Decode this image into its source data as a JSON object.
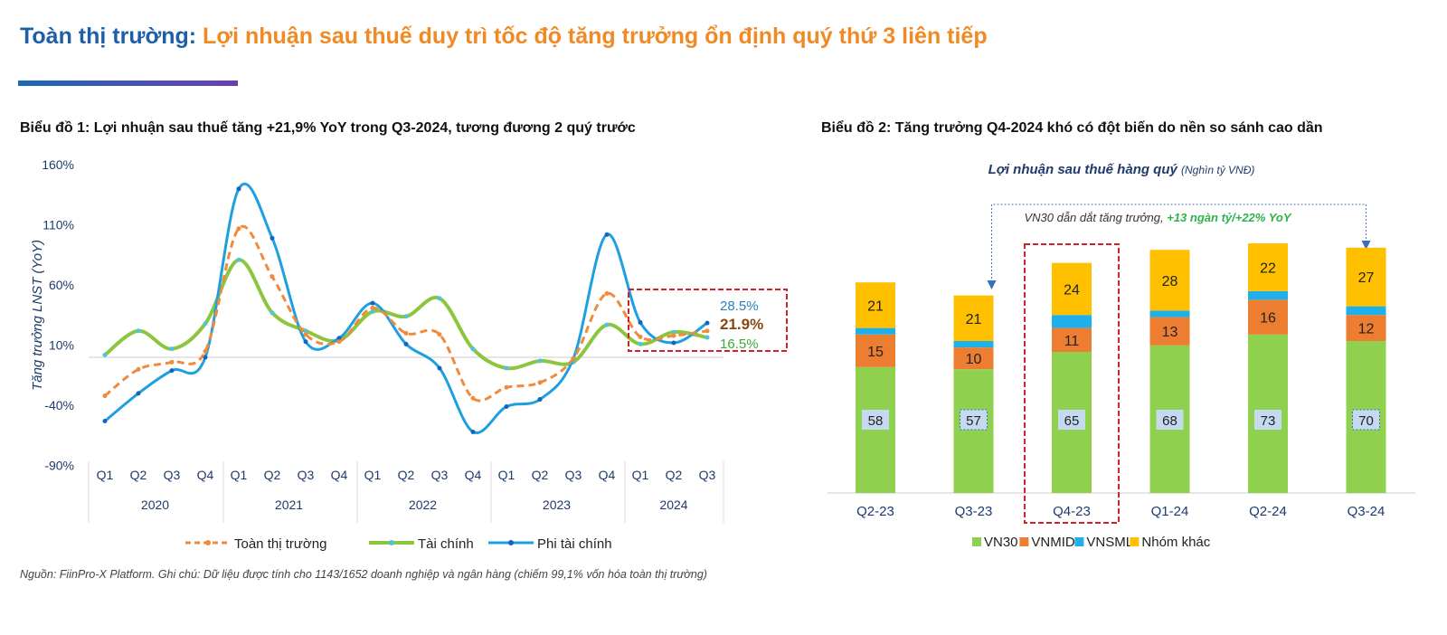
{
  "header": {
    "title_part1": "Toàn thị trường:",
    "title_part2": "Lợi nhuận sau thuế duy trì tốc độ tăng trưởng ổn định quý thứ 3 liên tiếp"
  },
  "footer": {
    "source": "Nguồn: FiinPro-X Platform. Ghi chú: Dữ liệu được tính cho 1143/1652 doanh nghiệp và ngân hàng (chiếm 99,1% vốn hóa toàn thị trường)"
  },
  "chart_data": [
    {
      "type": "line",
      "title": "Biểu đồ 1: Lợi nhuận sau thuế tăng +21,9% YoY trong Q3-2024, tương đương 2 quý trước",
      "ylabel": "Tăng trưởng LNST (YoY)",
      "ylim": [
        -90,
        160
      ],
      "yticks": [
        "160%",
        "110%",
        "60%",
        "10%",
        "-40%",
        "-90%"
      ],
      "ytick_values": [
        160,
        110,
        60,
        10,
        -40,
        -90
      ],
      "quarters": [
        "Q1",
        "Q2",
        "Q3",
        "Q4",
        "Q1",
        "Q2",
        "Q3",
        "Q4",
        "Q1",
        "Q2",
        "Q3",
        "Q4",
        "Q1",
        "Q2",
        "Q3",
        "Q4",
        "Q1",
        "Q2",
        "Q3"
      ],
      "years": [
        "2020",
        "2021",
        "2022",
        "2023",
        "2024"
      ],
      "series": [
        {
          "name": "Toàn thị trường",
          "color": "#f08a3c",
          "dashed": true,
          "values": [
            -32,
            -10,
            -4,
            5,
            107,
            67,
            19,
            13,
            41,
            20,
            19,
            -34,
            -25,
            -21,
            -1,
            53,
            17,
            18,
            21.9
          ],
          "end_label": "21.9%",
          "end_color": "#8b4513"
        },
        {
          "name": "Tài chính",
          "color": "#8cc63f",
          "dashed": false,
          "values": [
            2,
            22,
            7,
            28,
            81,
            37,
            22,
            14,
            38,
            34,
            49,
            7,
            -9,
            -3,
            -4,
            27,
            11,
            21,
            16.5
          ],
          "end_label": "16.5%",
          "end_color": "#3aaa35"
        },
        {
          "name": "Phi tài chính",
          "color": "#1ea0e0",
          "dashed": false,
          "values": [
            -53,
            -30,
            -11,
            0,
            140,
            99,
            13,
            16,
            45,
            11,
            -9,
            -62,
            -41,
            -35,
            -1,
            102,
            29,
            12,
            28.5
          ],
          "end_label": "28.5%",
          "end_color": "#2a7fc0"
        }
      ],
      "legend": "bottom"
    },
    {
      "type": "bar",
      "stacked": true,
      "title": "Biểu đồ 2: Tăng trưởng Q4-2024 khó có đột biến do nền so sánh cao dần",
      "subtitle": "Lợi nhuận sau thuế hàng quý",
      "subtitle_unit": "(Nghìn tỷ VNĐ)",
      "annotation": "VN30 dẫn dắt tăng trưởng,",
      "annotation_highlight": "+13 ngàn tỷ/+22% YoY",
      "categories": [
        "Q2-23",
        "Q3-23",
        "Q4-23",
        "Q1-24",
        "Q2-24",
        "Q3-24"
      ],
      "series": [
        {
          "name": "VN30",
          "color": "#8fd14f",
          "values": [
            58,
            57,
            65,
            68,
            73,
            70
          ]
        },
        {
          "name": "VNMID",
          "color": "#ed7d31",
          "values": [
            15,
            10,
            11,
            13,
            16,
            12
          ]
        },
        {
          "name": "VNSML",
          "color": "#1fb0ea",
          "values": [
            3,
            3,
            6,
            3,
            4,
            4
          ]
        },
        {
          "name": "Nhóm khác",
          "color": "#ffc000",
          "values": [
            21,
            21,
            24,
            28,
            22,
            27
          ]
        }
      ],
      "legend": "bottom"
    }
  ]
}
